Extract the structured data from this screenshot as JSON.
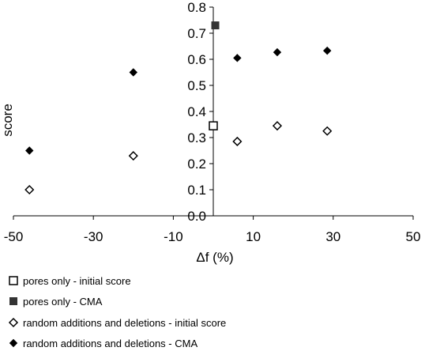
{
  "chart_data": {
    "type": "scatter",
    "xlabel": "Δf (%)",
    "ylabel": "score",
    "xlim": [
      -50,
      50
    ],
    "ylim": [
      0,
      0.8
    ],
    "x_ticks": [
      "-50",
      "-30",
      "-10",
      "10",
      "30",
      "50"
    ],
    "y_ticks": [
      "0.0",
      "0.1",
      "0.2",
      "0.3",
      "0.4",
      "0.5",
      "0.6",
      "0.7",
      "0.8"
    ],
    "grid": false,
    "legend_position": "bottom",
    "series": [
      {
        "name": "pores only - initial score",
        "marker": "open-square",
        "color": "#000000",
        "x": [
          0
        ],
        "y": [
          0.345
        ]
      },
      {
        "name": "pores only - CMA",
        "marker": "filled-square",
        "color": "#333333",
        "x": [
          0.5
        ],
        "y": [
          0.73
        ]
      },
      {
        "name": "random additions and deletions - initial score",
        "marker": "open-diamond",
        "color": "#000000",
        "x": [
          -46,
          -20,
          6,
          16,
          28.5
        ],
        "y": [
          0.1,
          0.23,
          0.285,
          0.345,
          0.325
        ]
      },
      {
        "name": "random additions and deletions - CMA",
        "marker": "filled-diamond",
        "color": "#000000",
        "x": [
          -46,
          -20,
          6,
          16,
          28.5
        ],
        "y": [
          0.25,
          0.55,
          0.605,
          0.627,
          0.633
        ]
      }
    ]
  }
}
